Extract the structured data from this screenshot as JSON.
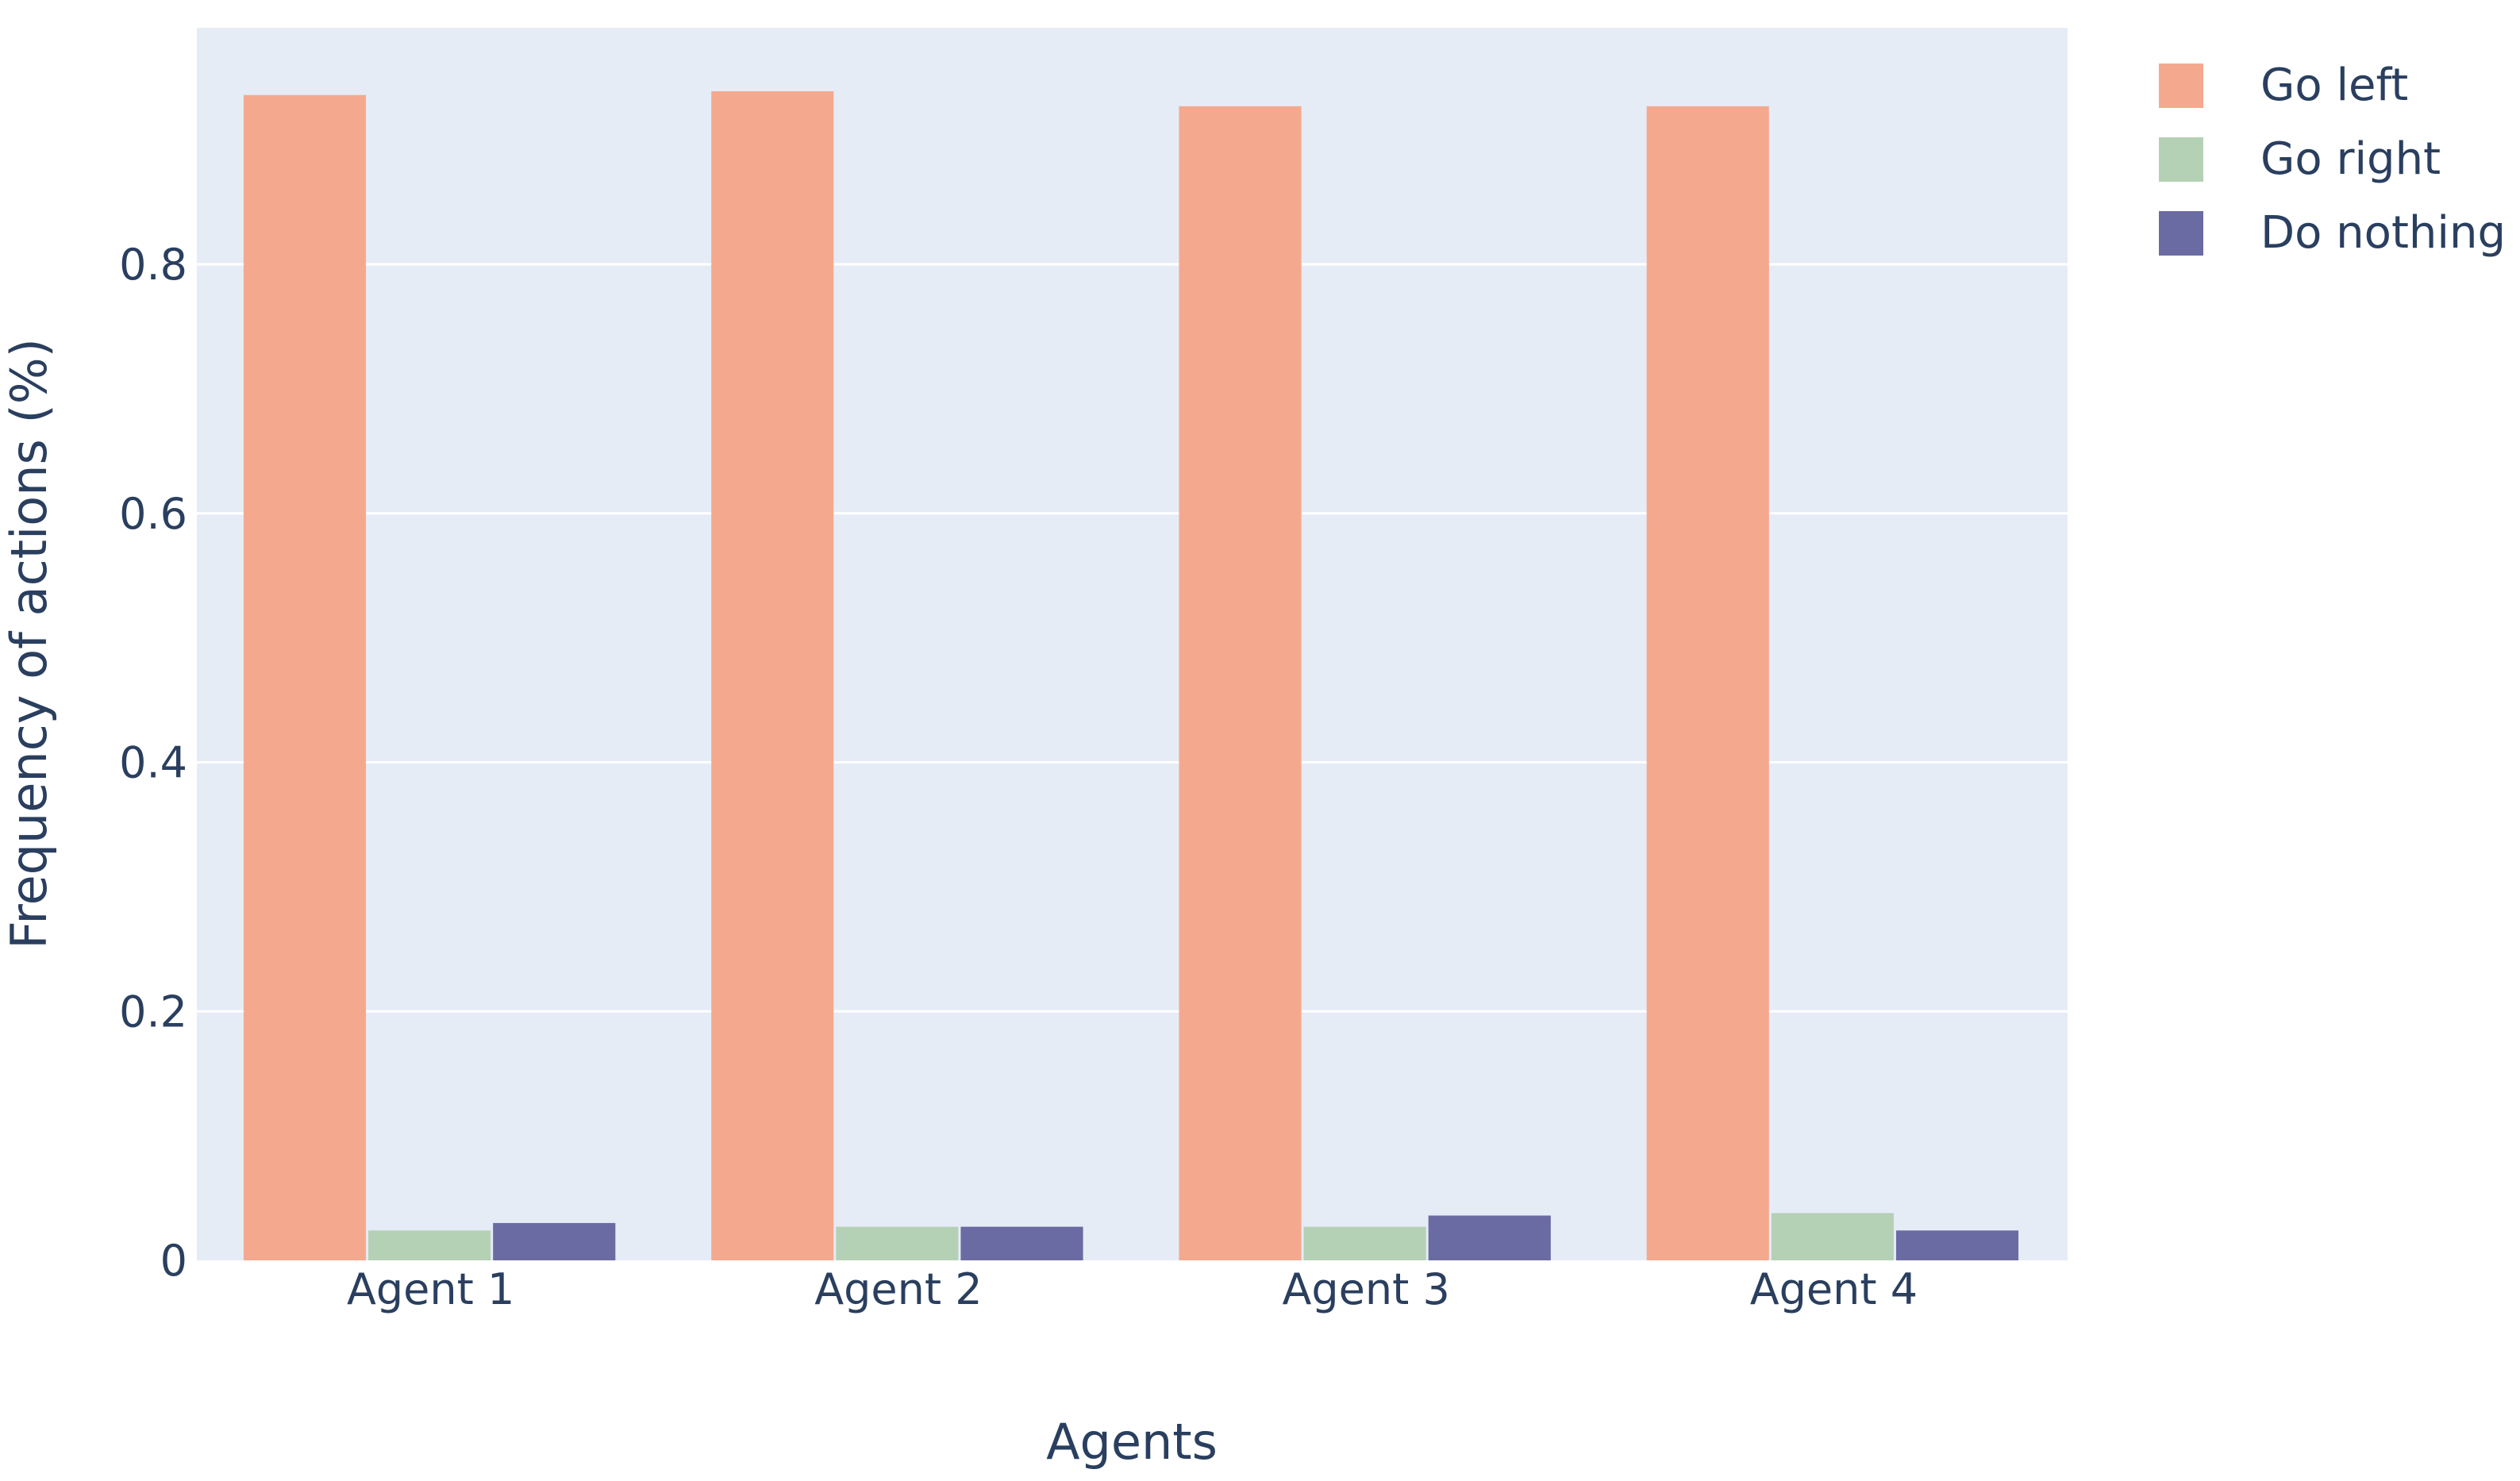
{
  "chart_data": {
    "type": "bar",
    "categories": [
      "Agent 1",
      "Agent 2",
      "Agent 3",
      "Agent 4"
    ],
    "series": [
      {
        "name": "Go left",
        "values": [
          0.936,
          0.939,
          0.927,
          0.927
        ],
        "color": "#f4a98f"
      },
      {
        "name": "Go right",
        "values": [
          0.024,
          0.027,
          0.027,
          0.038
        ],
        "color": "#b5d1b5"
      },
      {
        "name": "Do nothing",
        "values": [
          0.03,
          0.027,
          0.036,
          0.024
        ],
        "color": "#6b6ba3"
      }
    ],
    "xlabel": "Agents",
    "ylabel": "Frequency of actions (%)",
    "ylim": [
      0,
      0.99
    ],
    "yticks": [
      {
        "value": 0,
        "label": "0"
      },
      {
        "value": 0.2,
        "label": "0.2"
      },
      {
        "value": 0.4,
        "label": "0.4"
      },
      {
        "value": 0.6,
        "label": "0.6"
      },
      {
        "value": 0.8,
        "label": "0.8"
      }
    ],
    "grid": true,
    "legend_position": "top-right",
    "plot_background": "#e5ecf6",
    "gridline_color": "#ffffff",
    "text_color": "#2a3f5f"
  }
}
